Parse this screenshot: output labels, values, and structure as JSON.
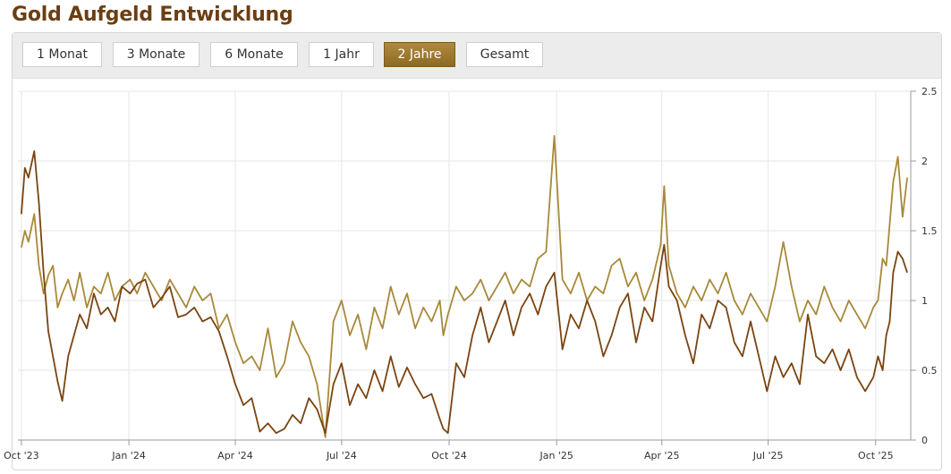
{
  "page": {
    "title": "Gold Aufgeld Entwicklung"
  },
  "toolbar": {
    "buttons": [
      {
        "label": "1 Monat",
        "active": false
      },
      {
        "label": "3 Monate",
        "active": false
      },
      {
        "label": "6 Monate",
        "active": false
      },
      {
        "label": "1 Jahr",
        "active": false
      },
      {
        "label": "2 Jahre",
        "active": true
      },
      {
        "label": "Gesamt",
        "active": false
      }
    ]
  },
  "colors": {
    "series_dark": "#7a4410",
    "series_light": "#a8893a",
    "active_button": "#9c7a31",
    "title": "#6b3f12"
  },
  "chart_data": {
    "type": "line",
    "title": "",
    "xlabel": "",
    "ylabel": "",
    "ylim": [
      0,
      2.5
    ],
    "yticks": [
      0,
      0.5,
      1,
      1.5,
      2,
      2.5
    ],
    "ytick_labels": [
      "0",
      "0.5",
      "1",
      "1.5",
      "2",
      "2.5"
    ],
    "xlim": [
      "2023-09-28",
      "2025-10-31"
    ],
    "xticks": [
      "2023-10-01",
      "2024-01-01",
      "2024-04-01",
      "2024-07-01",
      "2024-10-01",
      "2025-01-01",
      "2025-04-01",
      "2025-07-01",
      "2025-10-01"
    ],
    "xtick_labels": [
      "Oct '23",
      "Jan '24",
      "Apr '24",
      "Jul '24",
      "Oct '24",
      "Jan '25",
      "Apr '25",
      "Jul '25",
      "Oct '25"
    ],
    "grid": true,
    "legend": "none",
    "series": [
      {
        "color": "#7a4410",
        "x": [
          "2023-10-01",
          "2023-10-04",
          "2023-10-07",
          "2023-10-12",
          "2023-10-16",
          "2023-10-20",
          "2023-10-24",
          "2023-10-28",
          "2023-11-01",
          "2023-11-05",
          "2023-11-10",
          "2023-11-15",
          "2023-11-20",
          "2023-11-26",
          "2023-12-02",
          "2023-12-08",
          "2023-12-14",
          "2023-12-20",
          "2023-12-26",
          "2024-01-02",
          "2024-01-08",
          "2024-01-15",
          "2024-01-22",
          "2024-01-29",
          "2024-02-05",
          "2024-02-12",
          "2024-02-19",
          "2024-02-26",
          "2024-03-04",
          "2024-03-11",
          "2024-03-18",
          "2024-03-25",
          "2024-04-01",
          "2024-04-08",
          "2024-04-15",
          "2024-04-22",
          "2024-04-29",
          "2024-05-06",
          "2024-05-13",
          "2024-05-20",
          "2024-05-27",
          "2024-06-03",
          "2024-06-10",
          "2024-06-17",
          "2024-06-24",
          "2024-07-01",
          "2024-07-08",
          "2024-07-15",
          "2024-07-22",
          "2024-07-29",
          "2024-08-05",
          "2024-08-12",
          "2024-08-19",
          "2024-08-26",
          "2024-09-02",
          "2024-09-09",
          "2024-09-16",
          "2024-09-23",
          "2024-09-26",
          "2024-09-30",
          "2024-10-07",
          "2024-10-14",
          "2024-10-21",
          "2024-10-28",
          "2024-11-04",
          "2024-11-11",
          "2024-11-18",
          "2024-11-25",
          "2024-12-02",
          "2024-12-09",
          "2024-12-16",
          "2024-12-23",
          "2024-12-30",
          "2025-01-06",
          "2025-01-13",
          "2025-01-20",
          "2025-01-27",
          "2025-02-03",
          "2025-02-10",
          "2025-02-17",
          "2025-02-24",
          "2025-03-03",
          "2025-03-10",
          "2025-03-17",
          "2025-03-24",
          "2025-03-31",
          "2025-04-03",
          "2025-04-07",
          "2025-04-14",
          "2025-04-21",
          "2025-04-28",
          "2025-05-05",
          "2025-05-12",
          "2025-05-19",
          "2025-05-26",
          "2025-06-02",
          "2025-06-09",
          "2025-06-16",
          "2025-06-23",
          "2025-06-30",
          "2025-07-07",
          "2025-07-14",
          "2025-07-21",
          "2025-07-28",
          "2025-08-04",
          "2025-08-11",
          "2025-08-18",
          "2025-08-25",
          "2025-09-01",
          "2025-09-08",
          "2025-09-15",
          "2025-09-22",
          "2025-09-29",
          "2025-10-03",
          "2025-10-07",
          "2025-10-10",
          "2025-10-13",
          "2025-10-16",
          "2025-10-20",
          "2025-10-24",
          "2025-10-28"
        ],
        "y": [
          1.62,
          1.95,
          1.88,
          2.07,
          1.7,
          1.2,
          0.78,
          0.6,
          0.42,
          0.28,
          0.6,
          0.75,
          0.9,
          0.8,
          1.05,
          0.9,
          0.95,
          0.85,
          1.1,
          1.05,
          1.12,
          1.15,
          0.95,
          1.02,
          1.1,
          0.88,
          0.9,
          0.95,
          0.85,
          0.88,
          0.78,
          0.6,
          0.4,
          0.25,
          0.3,
          0.06,
          0.12,
          0.05,
          0.08,
          0.18,
          0.12,
          0.3,
          0.22,
          0.05,
          0.4,
          0.55,
          0.25,
          0.4,
          0.3,
          0.5,
          0.35,
          0.6,
          0.38,
          0.52,
          0.4,
          0.3,
          0.33,
          0.15,
          0.08,
          0.05,
          0.55,
          0.45,
          0.75,
          0.95,
          0.7,
          0.85,
          1.0,
          0.75,
          0.95,
          1.05,
          0.9,
          1.1,
          1.2,
          0.65,
          0.9,
          0.8,
          1.0,
          0.85,
          0.6,
          0.75,
          0.95,
          1.05,
          0.7,
          0.95,
          0.85,
          1.25,
          1.4,
          1.1,
          1.0,
          0.75,
          0.55,
          0.9,
          0.8,
          1.0,
          0.95,
          0.7,
          0.6,
          0.85,
          0.6,
          0.35,
          0.6,
          0.45,
          0.55,
          0.4,
          0.9,
          0.6,
          0.55,
          0.65,
          0.5,
          0.65,
          0.45,
          0.35,
          0.45,
          0.6,
          0.5,
          0.75,
          0.85,
          1.2,
          1.35,
          1.3,
          1.2
        ]
      },
      {
        "color": "#a8893a",
        "x": [
          "2023-10-01",
          "2023-10-04",
          "2023-10-07",
          "2023-10-12",
          "2023-10-16",
          "2023-10-20",
          "2023-10-24",
          "2023-10-28",
          "2023-11-01",
          "2023-11-05",
          "2023-11-10",
          "2023-11-15",
          "2023-11-20",
          "2023-11-26",
          "2023-12-02",
          "2023-12-08",
          "2023-12-14",
          "2023-12-20",
          "2023-12-26",
          "2024-01-02",
          "2024-01-08",
          "2024-01-15",
          "2024-01-22",
          "2024-01-29",
          "2024-02-05",
          "2024-02-12",
          "2024-02-19",
          "2024-02-26",
          "2024-03-04",
          "2024-03-11",
          "2024-03-18",
          "2024-03-25",
          "2024-04-01",
          "2024-04-08",
          "2024-04-15",
          "2024-04-22",
          "2024-04-29",
          "2024-05-06",
          "2024-05-13",
          "2024-05-20",
          "2024-05-27",
          "2024-06-03",
          "2024-06-10",
          "2024-06-17",
          "2024-06-24",
          "2024-07-01",
          "2024-07-08",
          "2024-07-15",
          "2024-07-22",
          "2024-07-29",
          "2024-08-05",
          "2024-08-12",
          "2024-08-19",
          "2024-08-26",
          "2024-09-02",
          "2024-09-09",
          "2024-09-16",
          "2024-09-23",
          "2024-09-26",
          "2024-09-30",
          "2024-10-07",
          "2024-10-14",
          "2024-10-21",
          "2024-10-28",
          "2024-11-04",
          "2024-11-11",
          "2024-11-18",
          "2024-11-25",
          "2024-12-02",
          "2024-12-09",
          "2024-12-16",
          "2024-12-23",
          "2024-12-30",
          "2025-01-06",
          "2025-01-13",
          "2025-01-20",
          "2025-01-27",
          "2025-02-03",
          "2025-02-10",
          "2025-02-17",
          "2025-02-24",
          "2025-03-03",
          "2025-03-10",
          "2025-03-17",
          "2025-03-24",
          "2025-03-31",
          "2025-04-03",
          "2025-04-07",
          "2025-04-14",
          "2025-04-21",
          "2025-04-28",
          "2025-05-05",
          "2025-05-12",
          "2025-05-19",
          "2025-05-26",
          "2025-06-02",
          "2025-06-09",
          "2025-06-16",
          "2025-06-23",
          "2025-06-30",
          "2025-07-07",
          "2025-07-14",
          "2025-07-21",
          "2025-07-28",
          "2025-08-04",
          "2025-08-11",
          "2025-08-18",
          "2025-08-25",
          "2025-09-01",
          "2025-09-08",
          "2025-09-15",
          "2025-09-22",
          "2025-09-29",
          "2025-10-03",
          "2025-10-07",
          "2025-10-10",
          "2025-10-13",
          "2025-10-16",
          "2025-10-20",
          "2025-10-24",
          "2025-10-28"
        ],
        "y": [
          1.38,
          1.5,
          1.42,
          1.62,
          1.25,
          1.05,
          1.18,
          1.25,
          0.95,
          1.05,
          1.15,
          1.0,
          1.2,
          0.95,
          1.1,
          1.05,
          1.2,
          1.0,
          1.1,
          1.15,
          1.05,
          1.2,
          1.1,
          1.0,
          1.15,
          1.05,
          0.95,
          1.1,
          1.0,
          1.05,
          0.8,
          0.9,
          0.7,
          0.55,
          0.6,
          0.5,
          0.8,
          0.45,
          0.55,
          0.85,
          0.7,
          0.6,
          0.4,
          0.02,
          0.85,
          1.0,
          0.75,
          0.9,
          0.65,
          0.95,
          0.8,
          1.1,
          0.9,
          1.05,
          0.8,
          0.95,
          0.85,
          1.0,
          0.75,
          0.9,
          1.1,
          1.0,
          1.05,
          1.15,
          1.0,
          1.1,
          1.2,
          1.05,
          1.15,
          1.1,
          1.3,
          1.35,
          2.18,
          1.15,
          1.05,
          1.2,
          1.0,
          1.1,
          1.05,
          1.25,
          1.3,
          1.1,
          1.2,
          1.0,
          1.15,
          1.4,
          1.82,
          1.25,
          1.05,
          0.95,
          1.1,
          1.0,
          1.15,
          1.05,
          1.2,
          1.0,
          0.9,
          1.05,
          0.95,
          0.85,
          1.1,
          1.42,
          1.1,
          0.85,
          1.0,
          0.9,
          1.1,
          0.95,
          0.85,
          1.0,
          0.9,
          0.8,
          0.95,
          1.0,
          1.3,
          1.25,
          1.55,
          1.85,
          2.03,
          1.6,
          1.88
        ]
      }
    ]
  }
}
